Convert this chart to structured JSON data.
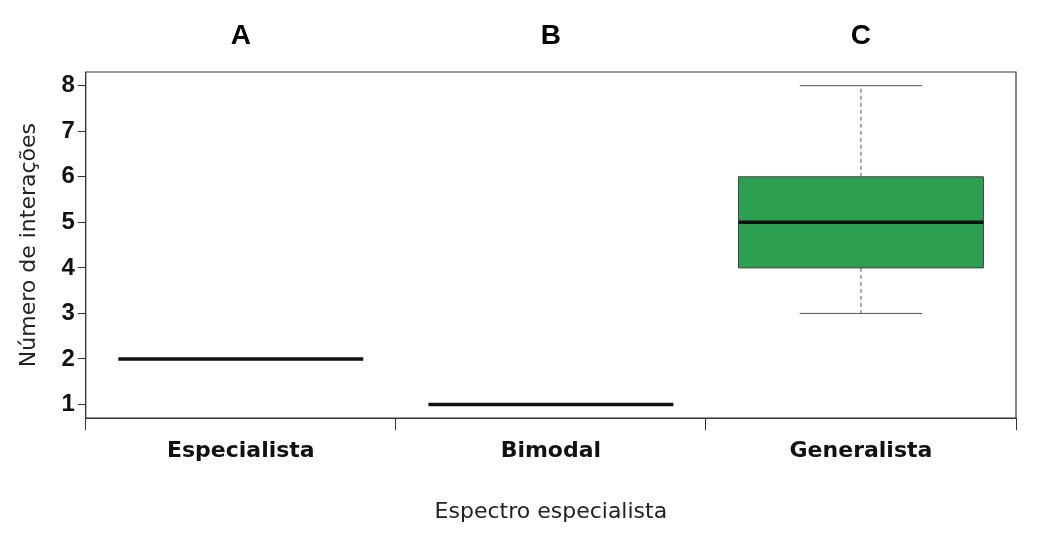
{
  "chart_data": {
    "type": "box",
    "xlabel": "Espectro especialista",
    "ylabel": "Número de interações",
    "categories": [
      "Especialista",
      "Bimodal",
      "Generalista"
    ],
    "series": [
      {
        "colors": [
          "#111111",
          "#111111",
          "#2ca050"
        ],
        "boxes": [
          {
            "low": 2,
            "q1": 2,
            "median": 2,
            "q3": 2,
            "high": 2
          },
          {
            "low": 1,
            "q1": 1,
            "median": 1,
            "q3": 1,
            "high": 1
          },
          {
            "low": 3,
            "q1": 4,
            "median": 5,
            "q3": 6,
            "high": 8
          }
        ]
      }
    ],
    "ylim": [
      0.7,
      8.3
    ],
    "yticks": [
      1,
      2,
      3,
      4,
      5,
      6,
      7,
      8
    ],
    "grid": false,
    "legend": false,
    "annotations": [
      "A",
      "B",
      "C"
    ]
  }
}
